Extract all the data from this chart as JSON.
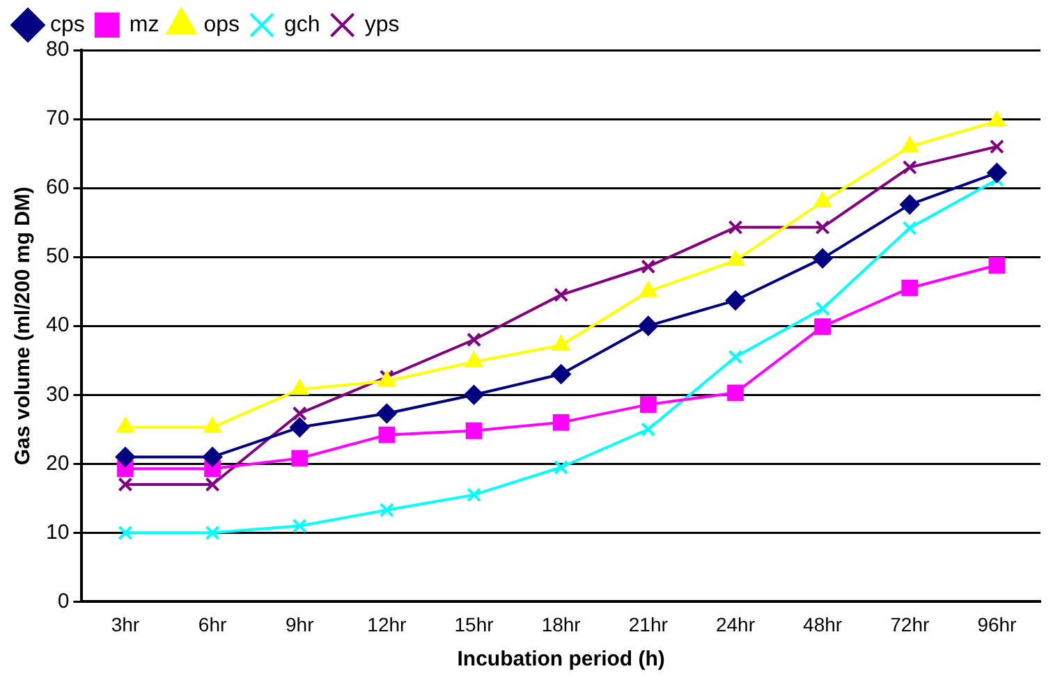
{
  "chart_data": {
    "type": "line",
    "xlabel": "Incubation period (h)",
    "ylabel": "Gas volume (ml/200 mg DM)",
    "categories": [
      "3hr",
      "6hr",
      "9hr",
      "12hr",
      "15hr",
      "18hr",
      "21hr",
      "24hr",
      "48hr",
      "72hr",
      "96hr"
    ],
    "series": [
      {
        "name": "cps",
        "color": "#000080",
        "marker": "diamond",
        "values": [
          21,
          21,
          25.3,
          27.3,
          30,
          33,
          40,
          43.7,
          49.8,
          57.6,
          62.2
        ]
      },
      {
        "name": "mz",
        "color": "#ff00ff",
        "marker": "square",
        "values": [
          19.3,
          19.3,
          20.8,
          24.2,
          24.8,
          26,
          28.6,
          30.3,
          39.9,
          45.5,
          48.8
        ]
      },
      {
        "name": "ops",
        "color": "#ffff00",
        "marker": "triangle",
        "values": [
          25.3,
          25.3,
          30.8,
          32,
          34.8,
          37.2,
          45,
          49.5,
          58,
          66,
          69.7
        ]
      },
      {
        "name": "gch",
        "color": "#00ffff",
        "marker": "cross",
        "values": [
          10,
          10,
          11,
          13.3,
          15.5,
          19.5,
          25,
          35.5,
          42.5,
          54.2,
          61.2
        ]
      },
      {
        "name": "yps",
        "color": "#800080",
        "marker": "cross",
        "values": [
          17,
          17,
          27.3,
          32.6,
          38,
          44.5,
          48.6,
          54.3,
          54.3,
          63,
          66
        ]
      }
    ],
    "ylim": [
      0,
      80
    ],
    "yticks": [
      0,
      10,
      20,
      30,
      40,
      50,
      60,
      70,
      80
    ],
    "grid": "y",
    "legend": "top left"
  }
}
